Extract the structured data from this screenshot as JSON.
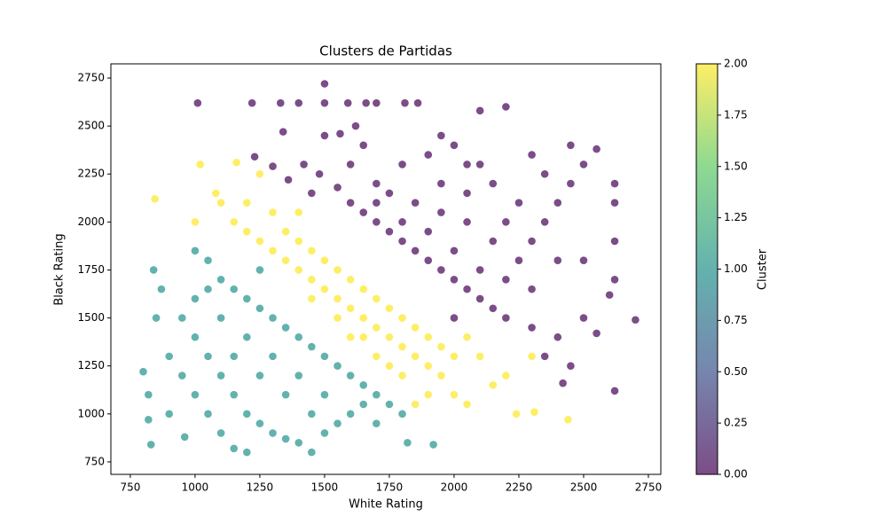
{
  "chart_data": {
    "type": "scatter",
    "title": "Clusters de Partidas",
    "x_label": "White Rating",
    "y_label": "Black Rating",
    "xlim": [
      675,
      2798
    ],
    "ylim": [
      685,
      2824
    ],
    "xticks": [
      750,
      1000,
      1250,
      1500,
      1750,
      2000,
      2250,
      2500,
      2750
    ],
    "yticks": [
      750,
      1000,
      1250,
      1500,
      1750,
      2000,
      2250,
      2500,
      2750
    ],
    "marker_alpha": 0.7,
    "colorbar": {
      "label": "Cluster",
      "lim": [
        0,
        2
      ],
      "colormap": [
        "#440154",
        "#3b528b",
        "#21918c",
        "#5ec962",
        "#fde725"
      ],
      "ticks": [
        {
          "value": 0,
          "label": "0.00"
        },
        {
          "value": 0.25,
          "label": "0.25"
        },
        {
          "value": 0.5,
          "label": "0.50"
        },
        {
          "value": 0.75,
          "label": "0.75"
        },
        {
          "value": 1,
          "label": "1.00"
        },
        {
          "value": 1.25,
          "label": "1.25"
        },
        {
          "value": 1.5,
          "label": "1.50"
        },
        {
          "value": 1.75,
          "label": "1.75"
        },
        {
          "value": 2,
          "label": "2.00"
        }
      ]
    },
    "series": [
      {
        "cluster": 0,
        "color": "#440154",
        "x": [
          1010,
          1220,
          1500,
          1330,
          1400,
          1500,
          1590,
          1660,
          1700,
          1810,
          1860,
          1340,
          1500,
          1560,
          1620,
          1230,
          1300,
          1360,
          1420,
          1480,
          1550,
          1600,
          1650,
          1700,
          1750,
          1800,
          1850,
          1900,
          1950,
          2000,
          2050,
          2100,
          2150,
          2000,
          2200,
          2300,
          2400,
          2350,
          2450,
          2420,
          2620,
          2700,
          2620,
          2620,
          2620,
          2620,
          2550,
          2500,
          2450,
          2400,
          2350,
          2300,
          2250,
          2200,
          2100,
          2000,
          1900,
          1800,
          1700,
          1600,
          1750,
          1850,
          1950,
          2050,
          2150,
          2250,
          2350,
          2150,
          2050,
          1900,
          2200,
          2100,
          1950,
          2500,
          2550,
          2300,
          2400,
          2500,
          2600,
          1650,
          1450,
          2000,
          2100,
          2200,
          1800,
          1700,
          1950,
          2050,
          2300,
          2450
        ],
        "y": [
          2620,
          2620,
          2720,
          2620,
          2620,
          2620,
          2620,
          2620,
          2620,
          2620,
          2620,
          2470,
          2450,
          2460,
          2500,
          2340,
          2290,
          2220,
          2300,
          2250,
          2180,
          2100,
          2050,
          2000,
          1950,
          1900,
          1850,
          1800,
          1750,
          1700,
          1650,
          1600,
          1550,
          1500,
          1500,
          1450,
          1400,
          1300,
          1250,
          1160,
          1120,
          1490,
          1700,
          1900,
          2100,
          2200,
          2380,
          2300,
          2200,
          2100,
          2000,
          1900,
          1800,
          1700,
          2300,
          2400,
          2350,
          2300,
          2200,
          2300,
          2150,
          2100,
          2050,
          2000,
          1900,
          2100,
          2250,
          2200,
          2150,
          1950,
          2600,
          2580,
          2450,
          1500,
          1420,
          1650,
          1800,
          1800,
          1620,
          2400,
          2150,
          1850,
          1750,
          2000,
          2000,
          2100,
          2200,
          2300,
          2350,
          2400
        ]
      },
      {
        "cluster": 1,
        "color": "#21918c",
        "x": [
          800,
          820,
          840,
          850,
          870,
          820,
          830,
          900,
          950,
          1000,
          1050,
          1100,
          1150,
          1200,
          1000,
          1050,
          1100,
          1150,
          1200,
          1250,
          1300,
          1350,
          1400,
          1450,
          1500,
          1550,
          1600,
          1650,
          1700,
          1750,
          1800,
          1820,
          1920,
          1050,
          1100,
          1150,
          1200,
          1250,
          1300,
          1350,
          1400,
          1450,
          1500,
          1550,
          1600,
          1650,
          1000,
          950,
          1100,
          1200,
          1300,
          1400,
          1500,
          1250,
          1350,
          1450,
          1150,
          1050,
          1000,
          900,
          960,
          1250,
          1700
        ],
        "y": [
          1220,
          1100,
          1750,
          1500,
          1650,
          970,
          840,
          1300,
          1200,
          1100,
          1000,
          900,
          820,
          800,
          1400,
          1300,
          1200,
          1100,
          1000,
          950,
          900,
          870,
          850,
          800,
          900,
          950,
          1000,
          1050,
          1100,
          1050,
          1000,
          850,
          840,
          1800,
          1700,
          1650,
          1600,
          1550,
          1500,
          1450,
          1400,
          1350,
          1300,
          1250,
          1200,
          1150,
          1600,
          1500,
          1500,
          1400,
          1300,
          1200,
          1100,
          1200,
          1100,
          1000,
          1300,
          1650,
          1850,
          1000,
          880,
          1750,
          950
        ]
      },
      {
        "cluster": 2,
        "color": "#fde725",
        "x": [
          845,
          1020,
          1160,
          1080,
          1000,
          1100,
          1150,
          1200,
          1250,
          1300,
          1350,
          1400,
          1450,
          1500,
          1550,
          1600,
          1650,
          1700,
          1750,
          1800,
          1850,
          1900,
          1950,
          2000,
          2050,
          2150,
          2200,
          2240,
          2310,
          2440,
          1300,
          1350,
          1400,
          1450,
          1500,
          1550,
          1600,
          1650,
          1700,
          1750,
          1800,
          1850,
          1900,
          1950,
          2000,
          2050,
          2100,
          1200,
          1250,
          1400,
          1600,
          1700,
          1800,
          1900,
          1850,
          2300,
          1450,
          1550,
          1650,
          1750
        ],
        "y": [
          2120,
          2300,
          2310,
          2150,
          2000,
          2100,
          2000,
          1950,
          1900,
          1850,
          1800,
          1750,
          1700,
          1650,
          1600,
          1550,
          1500,
          1450,
          1400,
          1350,
          1300,
          1250,
          1200,
          1100,
          1050,
          1150,
          1200,
          1000,
          1010,
          970,
          2050,
          1950,
          1900,
          1850,
          1800,
          1750,
          1700,
          1650,
          1600,
          1550,
          1500,
          1450,
          1400,
          1350,
          1300,
          1400,
          1300,
          2100,
          2250,
          2050,
          1400,
          1300,
          1200,
          1100,
          1050,
          1300,
          1600,
          1500,
          1400,
          1250
        ]
      }
    ]
  }
}
